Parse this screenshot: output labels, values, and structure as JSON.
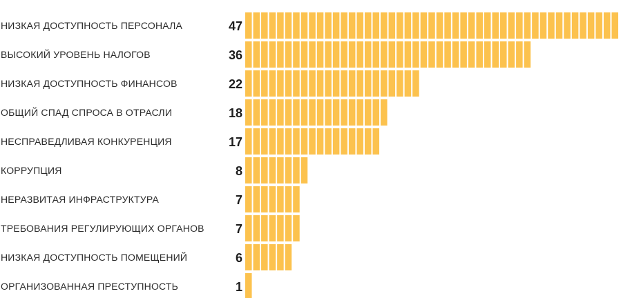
{
  "colors": {
    "bar": "#fcc24e",
    "text": "#2b2b2b",
    "value_text": "#1e1e1e",
    "background": "#ffffff"
  },
  "chart_data": {
    "type": "bar",
    "orientation": "horizontal",
    "title": "",
    "xlabel": "",
    "ylabel": "",
    "xlim": [
      0,
      47
    ],
    "grid": false,
    "legend": "none",
    "categories": [
      "НИЗКАЯ ДОСТУПНОСТЬ ПЕРСОНАЛА",
      "ВЫСОКИЙ УРОВЕНЬ НАЛОГОВ",
      "НИЗКАЯ ДОСТУПНОСТЬ ФИНАНСОВ",
      "ОБЩИЙ СПАД СПРОСА В ОТРАСЛИ",
      "НЕСПРАВЕДЛИВАЯ КОНКУРЕНЦИЯ",
      "КОРРУПЦИЯ",
      "НЕРАЗВИТАЯ ИНФРАСТРУКТУРА",
      "ТРЕБОВАНИЯ РЕГУЛИРУЮЩИХ ОРГАНОВ",
      "НИЗКАЯ ДОСТУПНОСТЬ ПОМЕЩЕНИЙ",
      "ОРГАНИЗОВАННАЯ ПРЕСТУПНОСТЬ"
    ],
    "values": [
      47,
      36,
      22,
      18,
      17,
      8,
      7,
      7,
      6,
      1
    ],
    "value_labels": [
      "47",
      "36",
      "22",
      "18",
      "17",
      "8",
      "7",
      "7",
      "6",
      "1"
    ]
  }
}
